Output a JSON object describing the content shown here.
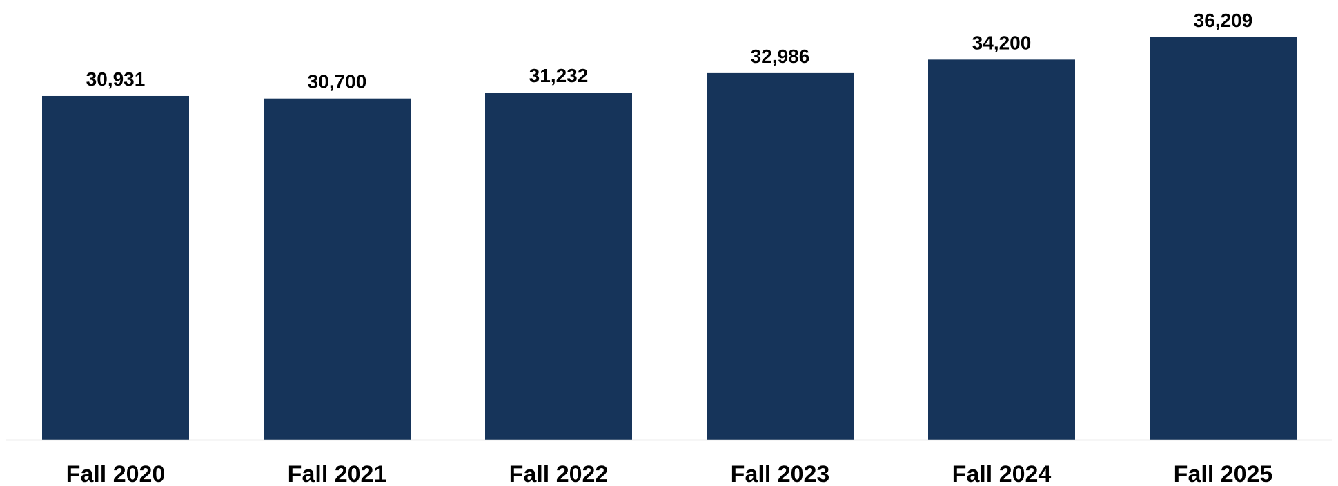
{
  "chart_data": {
    "type": "bar",
    "title": "",
    "xlabel": "",
    "ylabel": "",
    "categories": [
      "Fall 2020",
      "Fall 2021",
      "Fall 2022",
      "Fall 2023",
      "Fall 2024",
      "Fall 2025"
    ],
    "values": [
      30931,
      30700,
      31232,
      32986,
      34200,
      36209
    ],
    "value_labels": [
      "30,931",
      "30,700",
      "31,232",
      "32,986",
      "34,200",
      "36,209"
    ],
    "ylim": [
      0,
      36209
    ],
    "grid": false,
    "legend": "none",
    "colors": {
      "bar": "#16345A",
      "axis_line": "#D9D9D9",
      "text": "#000000"
    }
  }
}
